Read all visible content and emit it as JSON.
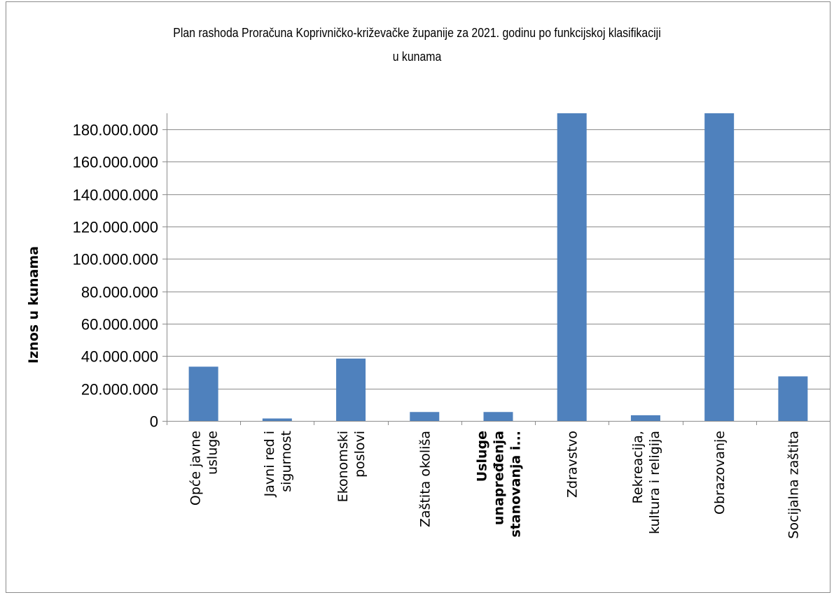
{
  "chart_data": {
    "type": "bar",
    "title_lines": [
      "Plan rashoda Proračuna Koprivničko-križevačke županije za 2021. godinu po funkcijskoj klasifikaciji",
      "u kunama"
    ],
    "ylabel": "Iznos u kunama",
    "xlabel": "",
    "categories": [
      [
        "Opće javne",
        "usluge"
      ],
      [
        "Javni red i",
        "sigurnost"
      ],
      [
        "Ekonomski",
        "poslovi"
      ],
      [
        "Zaštita okoliša"
      ],
      [
        "Usluge",
        "unapređenja",
        "stanovanja i..."
      ],
      [
        "Zdravstvo"
      ],
      [
        "Rekreacija,",
        "kultura i religija"
      ],
      [
        "Obrazovanje"
      ],
      [
        "Socijalna zaštita"
      ]
    ],
    "values": [
      33500000,
      1500000,
      38500000,
      5500000,
      5500000,
      190000000,
      3500000,
      190000000,
      27500000
    ],
    "ylim": [
      0,
      190000000
    ],
    "yticks": [
      0,
      20000000,
      40000000,
      60000000,
      80000000,
      100000000,
      120000000,
      140000000,
      160000000,
      180000000
    ],
    "ytick_labels": [
      "0",
      "20.000.000",
      "40.000.000",
      "60.000.000",
      "80.000.000",
      "100.000.000",
      "120.000.000",
      "140.000.000",
      "160.000.000",
      "180.000.000"
    ],
    "bar_color": "#4f81bd",
    "grid": true,
    "legend": "none"
  }
}
